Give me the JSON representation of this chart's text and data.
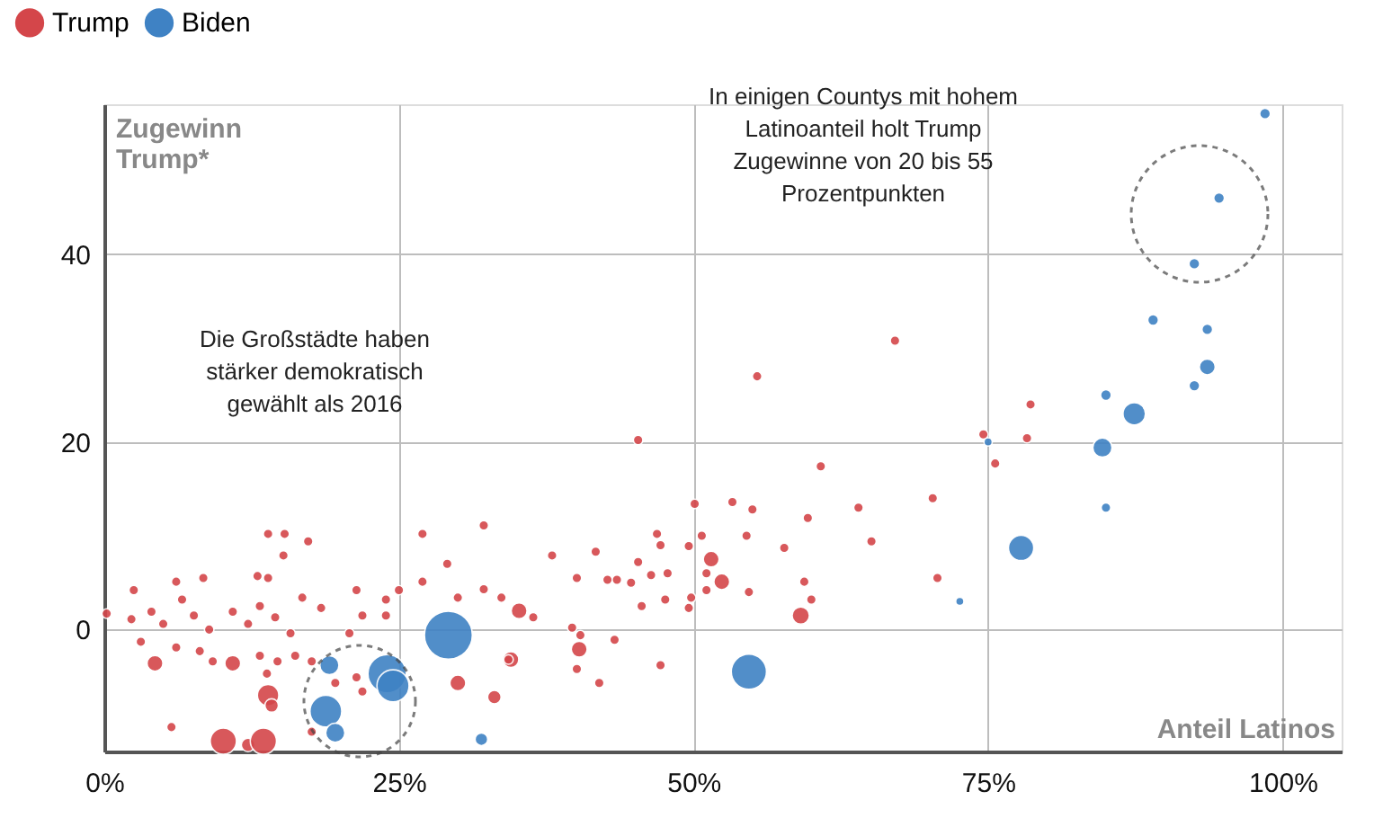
{
  "chart_data": {
    "type": "bubble",
    "xlabel": "Anteil Latinos",
    "ylabel": "Zugewinn\nTrump*",
    "xlim": [
      0,
      105
    ],
    "ylim": [
      -13,
      56
    ],
    "xticks": [
      {
        "value": 0,
        "label": "0%"
      },
      {
        "value": 25,
        "label": "25%"
      },
      {
        "value": 50,
        "label": "50%"
      },
      {
        "value": 75,
        "label": "75%"
      },
      {
        "value": 100,
        "label": "100%"
      }
    ],
    "yticks": [
      0,
      20,
      40
    ],
    "grid": true,
    "legend": "top left",
    "relative": false,
    "annotations": [
      "Die Großstädte haben\nstärker demokratisch\ngewählt als 2016",
      "In einigen Countys mit hohem\nLatinoanteil holt Trump\nZugewinne von 20 bis 55\nProzentpunkten"
    ],
    "series": [
      {
        "name": "Trump",
        "color": "#d4464a",
        "x": [
          67.1,
          55.4,
          45.3,
          78.6,
          78.3,
          74.6,
          75.6,
          60.8,
          50.1,
          53.3,
          55,
          59.7,
          64,
          70.3,
          65.1,
          70.7,
          46.9,
          47.2,
          50.7,
          54.5,
          57.7,
          49.6,
          41.7,
          38,
          45.3,
          51.5,
          40.1,
          42.7,
          43.5,
          44.7,
          46.4,
          47.8,
          51.1,
          52.4,
          59.4,
          54.7,
          51.1,
          47.6,
          49.8,
          45.6,
          49.6,
          60,
          35.2,
          36.4,
          39.7,
          40.4,
          40.3,
          43.3,
          40.1,
          42,
          47.2,
          34.5,
          59.1,
          13.9,
          15.3,
          15.2,
          17.3,
          27,
          32.2,
          29.1,
          13,
          13.9,
          8.4,
          2.5,
          6.1,
          0.2,
          2.3,
          4,
          5,
          6.6,
          7.6,
          8.9,
          10.9,
          12.2,
          13.2,
          14.5,
          15.8,
          16.8,
          18.4,
          21.4,
          23.9,
          25,
          27,
          30,
          32.2,
          33.7,
          21.9,
          23.9,
          20.8,
          3.1,
          6.1,
          8.1,
          4.3,
          10.9,
          9.2,
          13.2,
          14.7,
          13.8,
          16.2,
          17.6,
          21.4,
          21.9,
          13.9,
          14.2,
          30,
          34.3,
          33.1,
          5.7,
          19.6,
          10.1,
          12.2,
          13.5,
          17.6
        ],
        "values": [
          30.8,
          27,
          20.2,
          24,
          20.4,
          20.8,
          17.7,
          17.4,
          13.4,
          13.6,
          12.8,
          11.9,
          13,
          14,
          9.4,
          5.5,
          10.2,
          9,
          10,
          10,
          8.7,
          8.9,
          8.3,
          7.9,
          7.2,
          7.5,
          5.5,
          5.3,
          5.3,
          5,
          5.8,
          6,
          6,
          5.1,
          5.1,
          4,
          4.2,
          3.2,
          3.4,
          2.5,
          2.3,
          3.2,
          2,
          1.3,
          0.2,
          -0.6,
          -2.1,
          -1.1,
          -4.2,
          -5.7,
          -3.8,
          -3.2,
          1.5,
          10.2,
          10.2,
          7.9,
          9.4,
          10.2,
          11.1,
          7,
          5.7,
          5.5,
          5.5,
          4.2,
          5.1,
          1.7,
          1.1,
          1.9,
          0.6,
          3.2,
          1.5,
          0,
          1.9,
          0.6,
          2.5,
          1.3,
          -0.4,
          3.4,
          2.3,
          4.2,
          3.2,
          4.2,
          5.1,
          3.4,
          4.3,
          3.4,
          1.5,
          1.5,
          -0.4,
          -1.3,
          -1.9,
          -2.3,
          -3.6,
          -3.6,
          -3.4,
          -2.8,
          -3.4,
          -4.7,
          -2.8,
          -3.4,
          -5.1,
          -6.6,
          -7,
          -8.1,
          -5.7,
          -3.2,
          -7.2,
          -10.4,
          -5.7,
          -11.9,
          -12.3,
          -11.9,
          -10.9
        ],
        "sizes": [
          0.04,
          0.04,
          0.04,
          0.04,
          0.04,
          0.04,
          0.04,
          0.04,
          0.04,
          0.04,
          0.04,
          0.04,
          0.04,
          0.04,
          0.04,
          0.04,
          0.04,
          0.04,
          0.04,
          0.04,
          0.04,
          0.04,
          0.04,
          0.04,
          0.04,
          0.11,
          0.04,
          0.04,
          0.04,
          0.04,
          0.04,
          0.04,
          0.04,
          0.11,
          0.04,
          0.04,
          0.04,
          0.04,
          0.04,
          0.04,
          0.04,
          0.04,
          0.11,
          0.04,
          0.04,
          0.04,
          0.11,
          0.04,
          0.04,
          0.04,
          0.04,
          0.11,
          0.13,
          0.04,
          0.04,
          0.04,
          0.04,
          0.04,
          0.04,
          0.04,
          0.04,
          0.04,
          0.04,
          0.04,
          0.04,
          0.04,
          0.04,
          0.04,
          0.04,
          0.04,
          0.04,
          0.04,
          0.04,
          0.04,
          0.04,
          0.04,
          0.04,
          0.04,
          0.04,
          0.04,
          0.04,
          0.04,
          0.04,
          0.04,
          0.04,
          0.04,
          0.04,
          0.04,
          0.04,
          0.04,
          0.04,
          0.04,
          0.11,
          0.11,
          0.04,
          0.04,
          0.04,
          0.04,
          0.04,
          0.04,
          0.04,
          0.04,
          0.2,
          0.08,
          0.11,
          0.04,
          0.08,
          0.04,
          0.04,
          0.3,
          0.08,
          0.3,
          0.04
        ]
      },
      {
        "name": "Biden",
        "color": "#3f82c4",
        "x": [
          98.5,
          94.6,
          92.5,
          89,
          93.6,
          93.6,
          92.5,
          87.4,
          85,
          84.7,
          85,
          77.8,
          72.6,
          75,
          54.7,
          29.2,
          24,
          24.5,
          18.8,
          19.1,
          19.6,
          32
        ],
        "values": [
          55,
          46,
          39,
          33,
          32,
          28,
          26,
          23,
          25,
          19.4,
          13,
          8.7,
          3,
          20,
          -4.5,
          -0.6,
          -4.7,
          -6,
          -8.7,
          -3.8,
          -11,
          -11.7
        ],
        "sizes": [
          0.05,
          0.05,
          0.05,
          0.05,
          0.05,
          0.11,
          0.05,
          0.22,
          0.05,
          0.16,
          0.04,
          0.28,
          0.03,
          0.03,
          0.54,
          1,
          0.64,
          0.45,
          0.44,
          0.16,
          0.16,
          0.07
        ]
      }
    ]
  }
}
